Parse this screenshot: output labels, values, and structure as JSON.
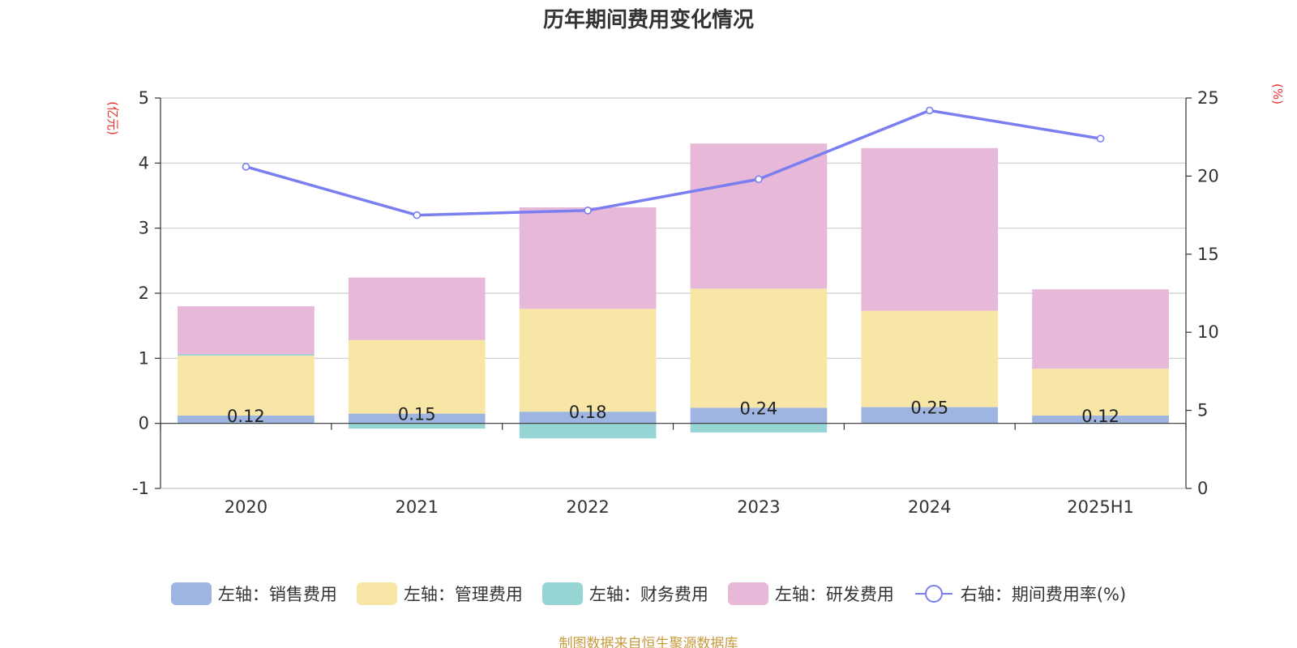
{
  "title": "历年期间费用变化情况",
  "source": "制图数据来自恒生聚源数据库",
  "source_color": "#c89a3c",
  "unit_color": "#e8302c",
  "colors": {
    "sales": "#9db5e0",
    "admin": "#f7e6a6",
    "finance": "#97d4d4",
    "rd": "#e7b8d8",
    "rate": "#7a7ef0"
  },
  "legend": [
    {
      "key": "sales",
      "label": "左轴：销售费用"
    },
    {
      "key": "admin",
      "label": "左轴：管理费用"
    },
    {
      "key": "finance",
      "label": "左轴：财务费用"
    },
    {
      "key": "rd",
      "label": "左轴：研发费用"
    },
    {
      "key": "rate",
      "label": "右轴：期间费用率(%)"
    }
  ],
  "chart_data": {
    "type": "bar",
    "stacked": true,
    "categories": [
      "2020",
      "2021",
      "2022",
      "2023",
      "2024",
      "2025H1"
    ],
    "series": [
      {
        "name": "左轴：销售费用",
        "key": "sales",
        "axis": "left",
        "values": [
          0.12,
          0.15,
          0.18,
          0.24,
          0.25,
          0.12
        ],
        "data_labels": [
          "0.12",
          "0.15",
          "0.18",
          "0.24",
          "0.25",
          "0.12"
        ]
      },
      {
        "name": "左轴：管理费用",
        "key": "admin",
        "axis": "left",
        "values": [
          0.92,
          1.13,
          1.58,
          1.83,
          1.48,
          0.72
        ]
      },
      {
        "name": "左轴：财务费用",
        "key": "finance",
        "axis": "left",
        "values": [
          0.02,
          -0.08,
          -0.23,
          -0.14,
          0.0,
          0.0
        ]
      },
      {
        "name": "左轴：研发费用",
        "key": "rd",
        "axis": "left",
        "values": [
          0.74,
          0.96,
          1.56,
          2.23,
          2.5,
          1.22
        ]
      },
      {
        "name": "右轴：期间费用率(%)",
        "key": "rate",
        "axis": "right",
        "type": "line",
        "values": [
          20.6,
          17.5,
          17.8,
          19.8,
          24.2,
          22.4
        ]
      }
    ],
    "left_axis": {
      "unit": "(亿元)",
      "ylim": [
        -1,
        5
      ],
      "ticks": [
        -1,
        0,
        1,
        2,
        3,
        4,
        5
      ]
    },
    "right_axis": {
      "unit": "(%)",
      "ylim": [
        0,
        25
      ],
      "ticks": [
        0,
        5,
        10,
        15,
        20,
        25
      ]
    },
    "grid": true,
    "legend_position": "bottom"
  }
}
